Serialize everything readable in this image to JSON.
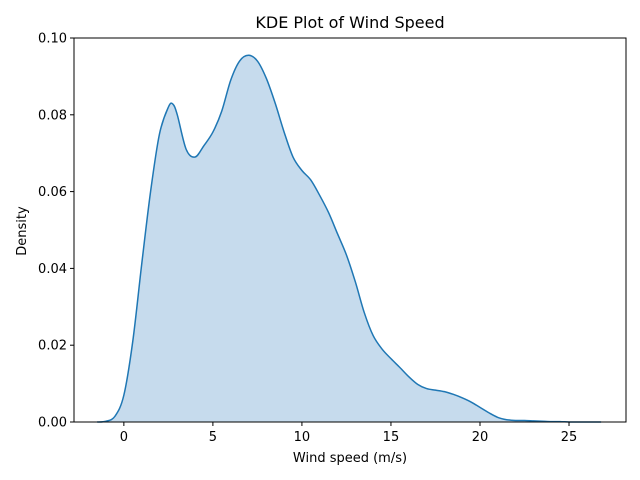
{
  "chart_data": {
    "type": "area",
    "title": "KDE Plot of Wind Speed",
    "xlabel": "Wind speed (m/s)",
    "ylabel": "Density",
    "xlim": [
      -2.8,
      28.2
    ],
    "ylim": [
      0.0,
      0.1
    ],
    "xticks": [
      0,
      5,
      10,
      15,
      20,
      25
    ],
    "xtick_labels": [
      "0",
      "5",
      "10",
      "15",
      "20",
      "25"
    ],
    "yticks": [
      0.0,
      0.02,
      0.04,
      0.06,
      0.08,
      0.1
    ],
    "ytick_labels": [
      "0.00",
      "0.02",
      "0.04",
      "0.06",
      "0.08",
      "0.10"
    ],
    "grid": false,
    "series": [
      {
        "color": "#1f77b4",
        "fill_color": "#c6dbed",
        "x": [
          -1.5,
          -1.0,
          -0.5,
          0.0,
          0.5,
          1.0,
          1.5,
          2.0,
          2.5,
          2.75,
          3.0,
          3.5,
          4.0,
          4.5,
          5.0,
          5.5,
          6.0,
          6.5,
          7.0,
          7.5,
          8.0,
          8.5,
          9.0,
          9.5,
          10.0,
          10.5,
          11.0,
          11.5,
          12.0,
          12.5,
          13.0,
          13.5,
          14.0,
          14.5,
          15.0,
          15.5,
          16.0,
          16.5,
          17.0,
          17.5,
          18.0,
          18.5,
          19.0,
          19.5,
          20.0,
          20.5,
          21.0,
          21.5,
          22.0,
          22.5,
          23.0,
          23.5,
          24.0,
          24.5,
          25.0,
          25.5,
          26.0,
          26.5,
          26.8
        ],
        "y": [
          0.0,
          0.0002,
          0.0015,
          0.007,
          0.021,
          0.041,
          0.06,
          0.075,
          0.082,
          0.0828,
          0.08,
          0.071,
          0.069,
          0.072,
          0.0755,
          0.081,
          0.089,
          0.094,
          0.0955,
          0.094,
          0.0895,
          0.083,
          0.0755,
          0.069,
          0.0655,
          0.063,
          0.059,
          0.0545,
          0.049,
          0.0435,
          0.0365,
          0.0285,
          0.0225,
          0.019,
          0.0165,
          0.0142,
          0.0118,
          0.0098,
          0.0087,
          0.0083,
          0.0079,
          0.0072,
          0.0063,
          0.0052,
          0.0038,
          0.0024,
          0.0012,
          0.0006,
          0.0004,
          0.0004,
          0.0003,
          0.0002,
          0.0001,
          0.0001,
          0.0,
          0.0,
          0.0,
          0.0,
          0.0
        ]
      }
    ]
  }
}
